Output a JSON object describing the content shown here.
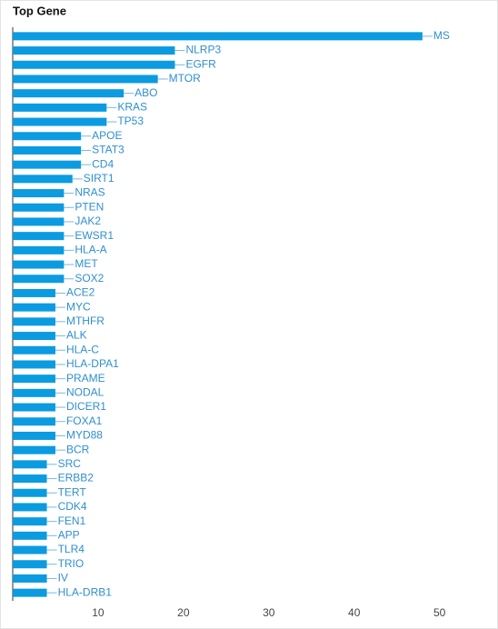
{
  "chart_data": {
    "type": "bar",
    "orientation": "horizontal",
    "title": "Top Gene",
    "categories": [
      "MS",
      "NLRP3",
      "EGFR",
      "MTOR",
      "ABO",
      "KRAS",
      "TP53",
      "APOE",
      "STAT3",
      "CD4",
      "SIRT1",
      "NRAS",
      "PTEN",
      "JAK2",
      "EWSR1",
      "HLA-A",
      "MET",
      "SOX2",
      "ACE2",
      "MYC",
      "MTHFR",
      "ALK",
      "HLA-C",
      "HLA-DPA1",
      "PRAME",
      "NODAL",
      "DICER1",
      "FOXA1",
      "MYD88",
      "BCR",
      "SRC",
      "ERBB2",
      "TERT",
      "CDK4",
      "FEN1",
      "APP",
      "TLR4",
      "TRIO",
      "IV",
      "HLA-DRB1"
    ],
    "values": [
      48,
      19,
      19,
      17,
      13,
      11,
      11,
      8,
      8,
      8,
      7,
      6,
      6,
      6,
      6,
      6,
      6,
      6,
      5,
      5,
      5,
      5,
      5,
      5,
      5,
      5,
      5,
      5,
      5,
      5,
      4,
      4,
      4,
      4,
      4,
      4,
      4,
      4,
      4,
      4
    ],
    "color": "#0b9be0",
    "xlim": [
      0,
      56
    ],
    "xticks": [
      10,
      20,
      30,
      40,
      50
    ],
    "grid": false
  }
}
